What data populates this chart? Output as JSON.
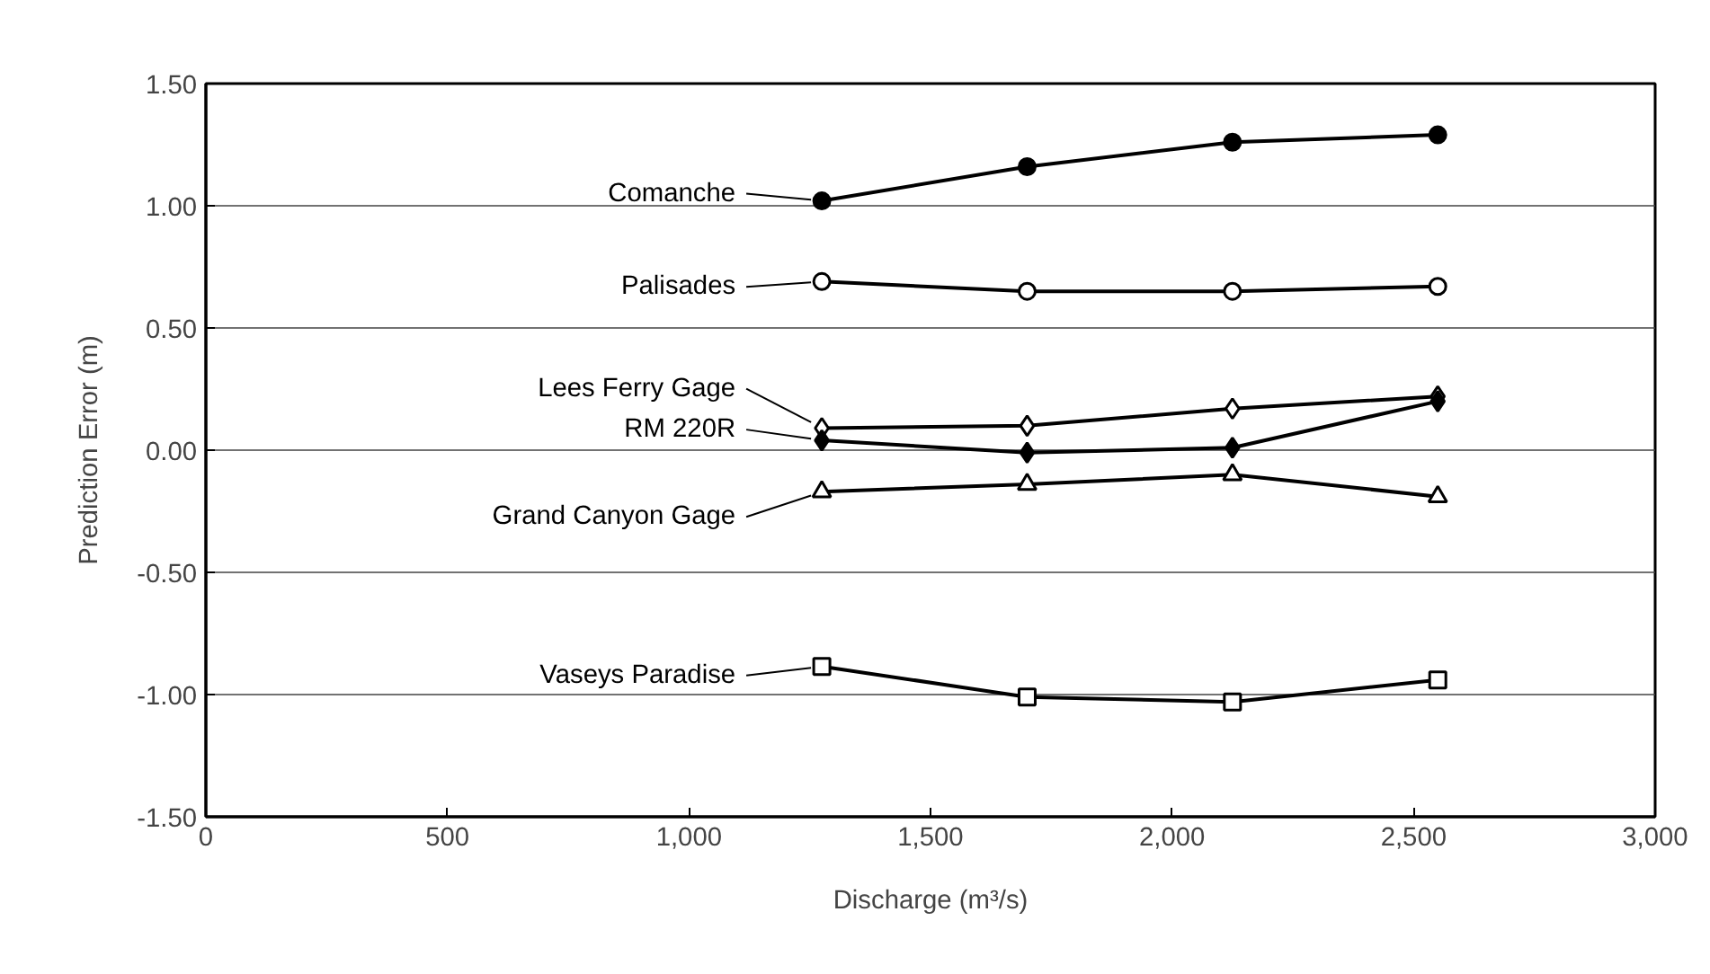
{
  "chart_data": {
    "type": "line",
    "xlabel": "Discharge (m³/s)",
    "ylabel": "Prediction Error (m)",
    "x": [
      1275,
      1700,
      2125,
      2550
    ],
    "series": [
      {
        "name": "Comanche",
        "color": "#000000",
        "marker": "circle",
        "values": [
          1.02,
          1.16,
          1.26,
          1.29
        ]
      },
      {
        "name": "Palisades",
        "color": "#000000",
        "marker": "circle",
        "values": [
          0.69,
          0.65,
          0.65,
          0.67
        ]
      },
      {
        "name": "Lees Ferry Gage",
        "color": "#000000",
        "marker": "diamond",
        "values": [
          0.09,
          0.1,
          0.17,
          0.22
        ]
      },
      {
        "name": "RM 220R",
        "color": "#000000",
        "marker": "diamond",
        "values": [
          0.04,
          -0.01,
          0.01,
          0.2
        ]
      },
      {
        "name": "Grand Canyon Gage",
        "color": "#000000",
        "marker": "triangle",
        "values": [
          -0.17,
          -0.14,
          -0.1,
          -0.19
        ]
      },
      {
        "name": "Vaseys Paradise",
        "color": "#000000",
        "marker": "square",
        "values": [
          -0.885,
          -1.01,
          -1.03,
          -0.94
        ]
      }
    ],
    "xlim": [
      0,
      3000
    ],
    "xticks": [
      0,
      {
        "value": 500,
        "label": "500"
      },
      {
        "value": 1000,
        "label": "1,000"
      },
      {
        "value": 1500,
        "label": "1,500"
      },
      {
        "value": 2000,
        "label": "2,000"
      },
      {
        "value": 2500,
        "label": "2,500"
      },
      {
        "value": 3000,
        "label": "3,000"
      }
    ],
    "ylim": [
      -1.5,
      1.5
    ],
    "yticks": [
      {
        "value": -1.5,
        "label": "-1.50"
      },
      {
        "value": -1,
        "label": "-1.00"
      },
      {
        "value": -0.5,
        "label": "-0.50"
      },
      {
        "value": 0,
        "label": "0.00"
      },
      {
        "value": 0.5,
        "label": "0.50"
      },
      {
        "value": 1,
        "label": "1.00"
      },
      {
        "value": 1.5,
        "label": "1.50"
      }
    ],
    "grid": "y",
    "line_style": "solid",
    "legend": "left"
  }
}
